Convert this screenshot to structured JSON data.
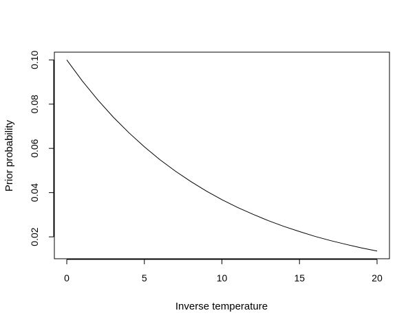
{
  "chart_data": {
    "type": "line",
    "title": "",
    "xlabel": "Inverse temperature",
    "ylabel": "Prior probability",
    "xlim": [
      -0.8,
      20.8
    ],
    "ylim": [
      0.0101,
      0.1035
    ],
    "grid": false,
    "legend": "none",
    "line_color": "#000000",
    "x_ticks": [
      {
        "value": 0,
        "label": "0"
      },
      {
        "value": 5,
        "label": "5"
      },
      {
        "value": 10,
        "label": "10"
      },
      {
        "value": 15,
        "label": "15"
      },
      {
        "value": 20,
        "label": "20"
      }
    ],
    "y_ticks": [
      {
        "value": 0.02,
        "label": "0.02"
      },
      {
        "value": 0.04,
        "label": "0.04"
      },
      {
        "value": 0.06,
        "label": "0.06"
      },
      {
        "value": 0.08,
        "label": "0.08"
      },
      {
        "value": 0.1,
        "label": "0.10"
      }
    ],
    "series": [
      {
        "x": [
          0,
          1,
          2,
          3,
          4,
          5,
          6,
          7,
          8,
          9,
          10,
          11,
          12,
          13,
          14,
          15,
          16,
          17,
          18,
          19,
          20
        ],
        "y": [
          0.1,
          0.0905,
          0.0819,
          0.0741,
          0.0671,
          0.0607,
          0.0549,
          0.0497,
          0.045,
          0.0407,
          0.0368,
          0.0333,
          0.0302,
          0.0273,
          0.0247,
          0.0224,
          0.0202,
          0.0183,
          0.0166,
          0.015,
          0.0136
        ]
      }
    ]
  }
}
